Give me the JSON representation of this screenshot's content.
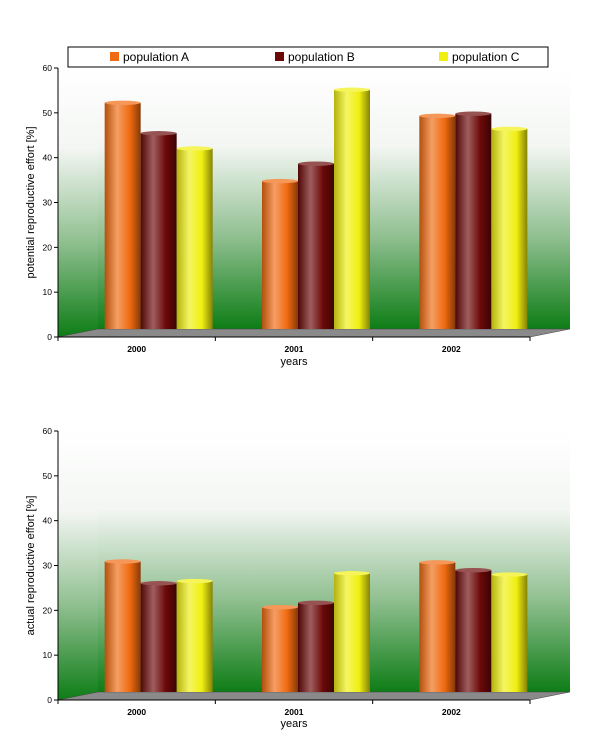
{
  "chart_data": [
    {
      "type": "bar",
      "categories": [
        "2000",
        "2001",
        "2002"
      ],
      "series": [
        {
          "name": "population A",
          "values": [
            52,
            34,
            49
          ],
          "color": "#f06a10"
        },
        {
          "name": "population B",
          "values": [
            45,
            38,
            49.5
          ],
          "color": "#6b0808"
        },
        {
          "name": "population C",
          "values": [
            41.5,
            55,
            46
          ],
          "color": "#f0ef10"
        }
      ],
      "xlabel": "years",
      "ylabel": "potential reproductive effort [%]",
      "ylim": [
        0,
        60
      ],
      "yticks": [
        "0",
        "10",
        "20",
        "30",
        "40",
        "50",
        "60"
      ],
      "legend": "top",
      "grid": false
    },
    {
      "type": "bar",
      "categories": [
        "2000",
        "2001",
        "2002"
      ],
      "series": [
        {
          "name": "population A",
          "values": [
            30,
            19.5,
            29.8
          ],
          "color": "#f06a10"
        },
        {
          "name": "population B",
          "values": [
            25,
            20.5,
            28
          ],
          "color": "#6b0808"
        },
        {
          "name": "population C",
          "values": [
            25.5,
            27.3,
            27
          ],
          "color": "#f0ef10"
        }
      ],
      "xlabel": "years",
      "ylabel": "actual reproductive effort [%]",
      "ylim": [
        0,
        60
      ],
      "yticks": [
        "0",
        "10",
        "20",
        "30",
        "40",
        "50",
        "60"
      ],
      "legend": "none",
      "grid": false
    }
  ]
}
